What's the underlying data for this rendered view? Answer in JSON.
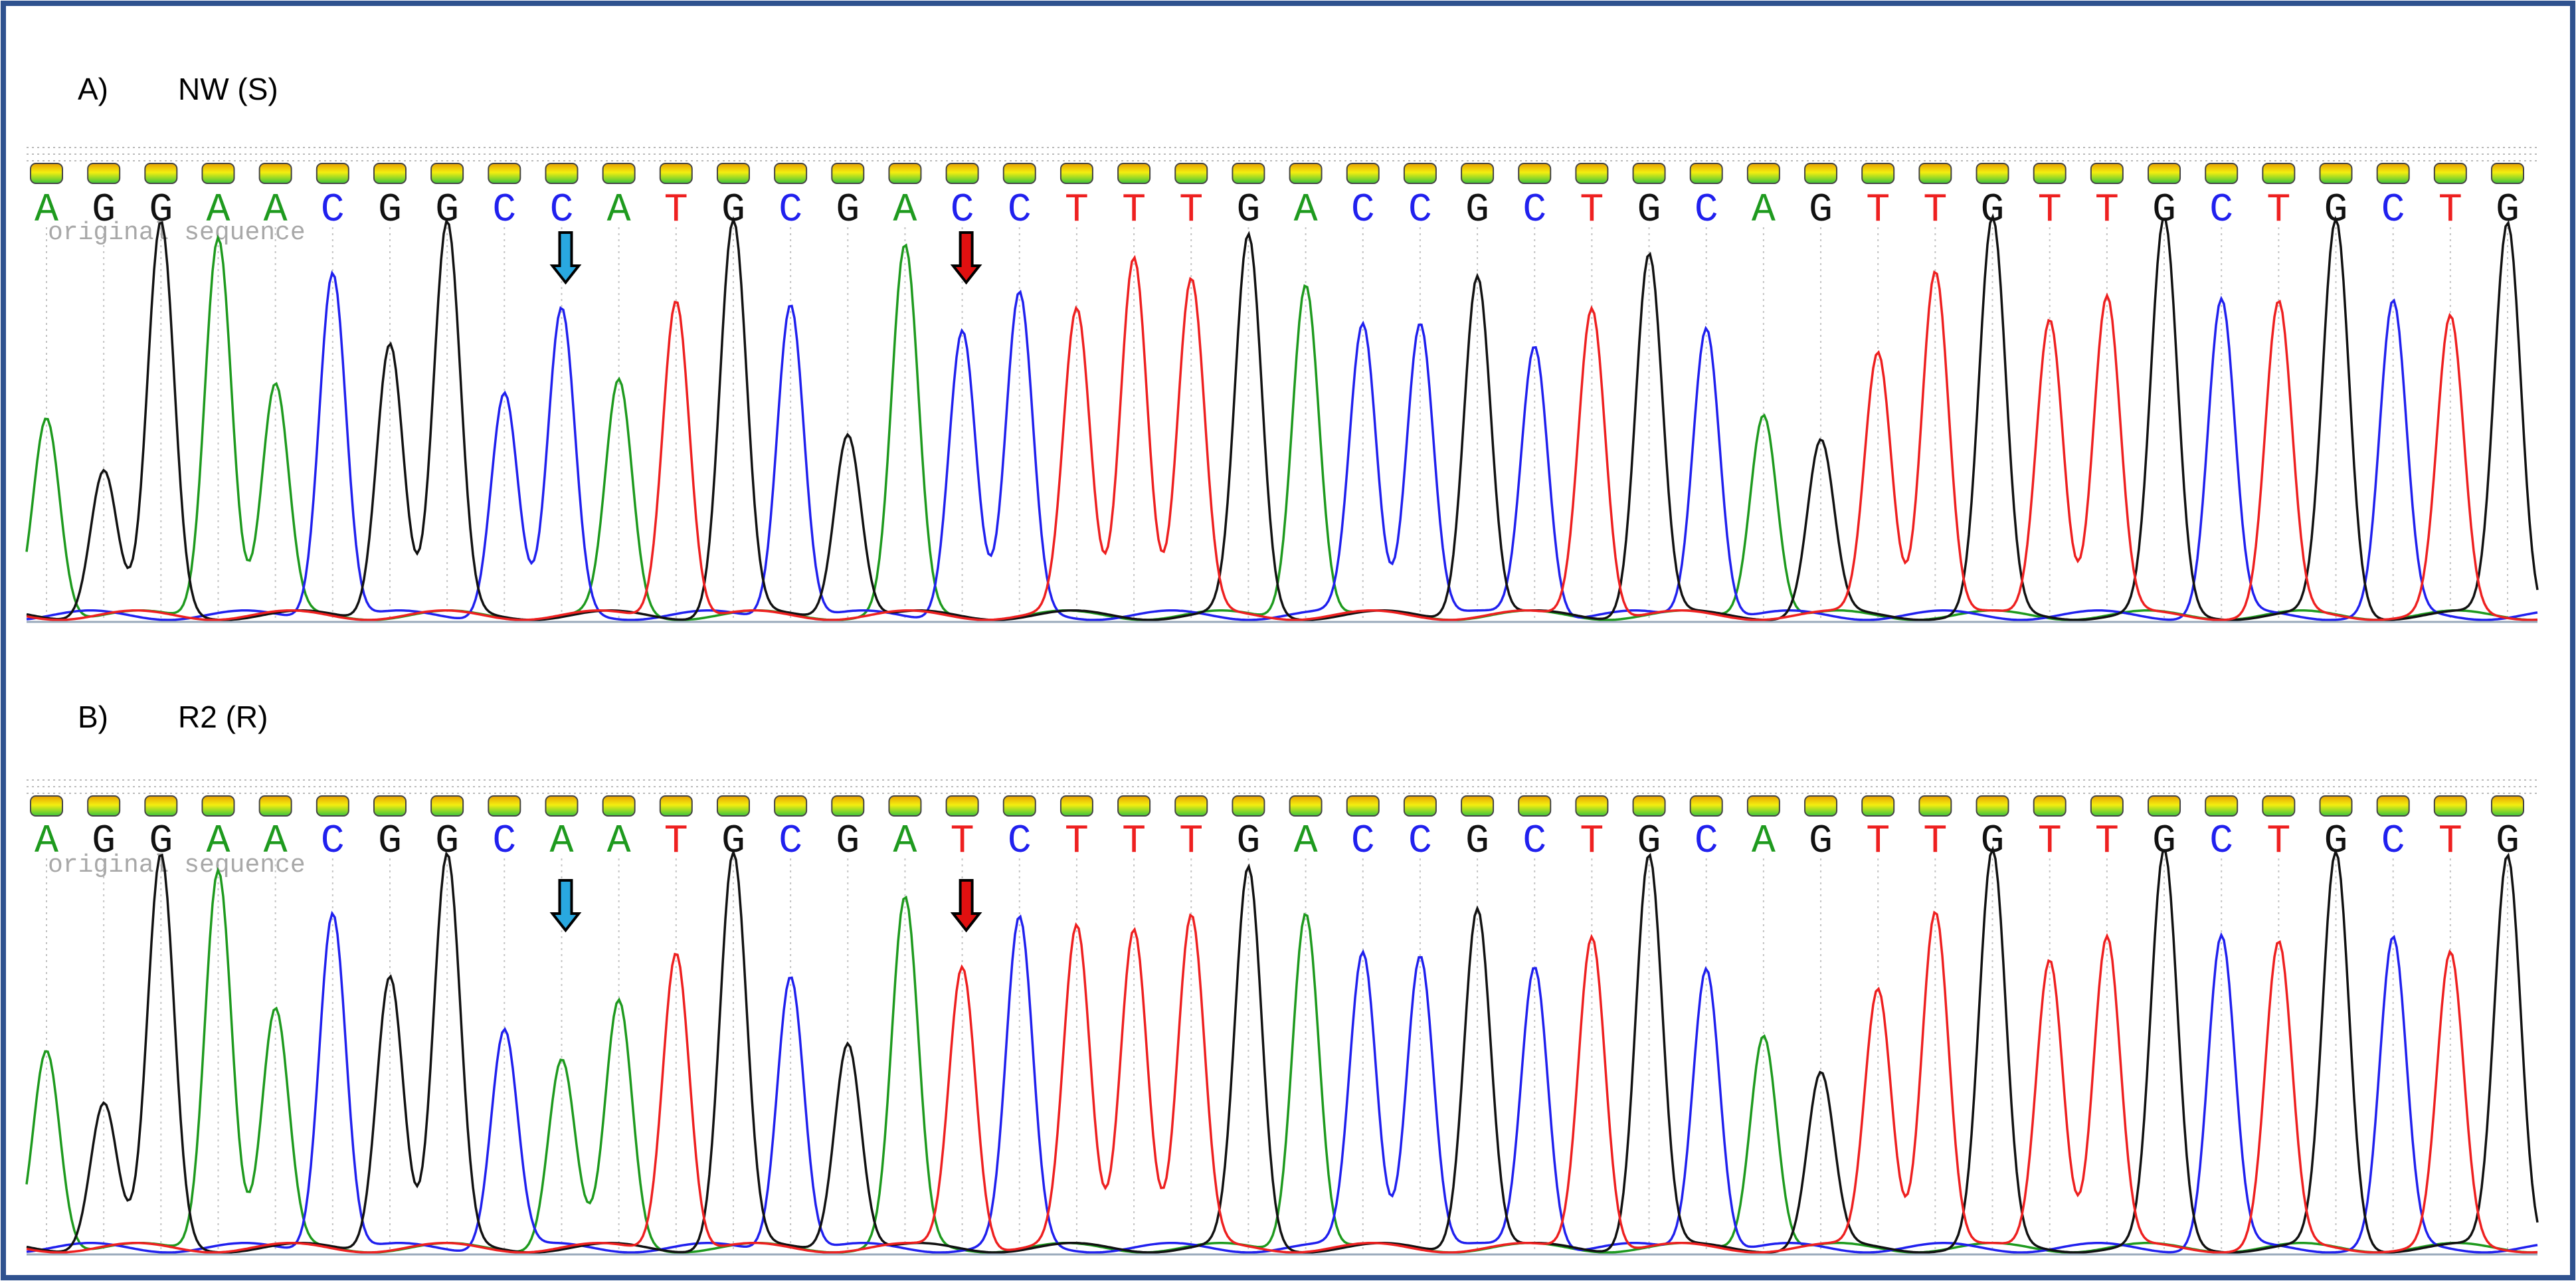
{
  "panels": [
    {
      "label": "A)",
      "name": "NW (S)",
      "sequence_label": "original sequence",
      "bases": [
        "A",
        "G",
        "G",
        "A",
        "A",
        "C",
        "G",
        "G",
        "C",
        "C",
        "A",
        "T",
        "G",
        "C",
        "G",
        "A",
        "C",
        "C",
        "T",
        "T",
        "T",
        "G",
        "A",
        "C",
        "C",
        "G",
        "C",
        "T",
        "G",
        "C",
        "A",
        "G",
        "T",
        "T",
        "G",
        "T",
        "T",
        "G",
        "C",
        "T",
        "G",
        "C",
        "T",
        "G"
      ]
    },
    {
      "label": "B)",
      "name": "R2 (R)",
      "sequence_label": "original sequence",
      "bases": [
        "A",
        "G",
        "G",
        "A",
        "A",
        "C",
        "G",
        "G",
        "C",
        "A",
        "A",
        "T",
        "G",
        "C",
        "G",
        "A",
        "T",
        "C",
        "T",
        "T",
        "T",
        "G",
        "A",
        "C",
        "C",
        "G",
        "C",
        "T",
        "G",
        "C",
        "A",
        "G",
        "T",
        "T",
        "G",
        "T",
        "T",
        "G",
        "C",
        "T",
        "G",
        "C",
        "T",
        "G"
      ]
    }
  ]
}
